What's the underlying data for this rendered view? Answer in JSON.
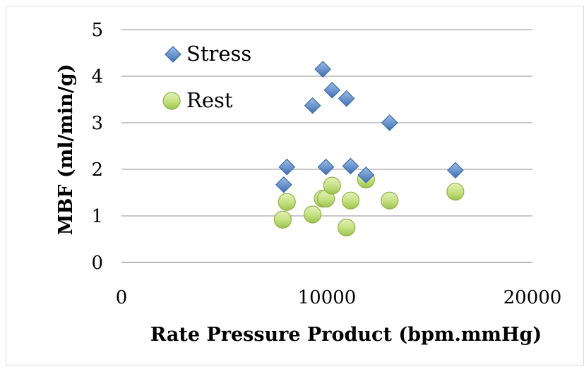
{
  "chart_data": {
    "type": "scatter",
    "title": "",
    "xlabel": "Rate Pressure Product (bpm.mmHg)",
    "ylabel": "MBF (ml/min/g)",
    "xlim": [
      0,
      20000
    ],
    "ylim": [
      0,
      5
    ],
    "xticks": [
      "0",
      "10000",
      "20000"
    ],
    "yticks": [
      "0",
      "1",
      "2",
      "3",
      "4",
      "5"
    ],
    "grid": "horizontal",
    "legend_position": "top-left",
    "series": [
      {
        "name": "Stress",
        "marker": "diamond",
        "color": "#4f81bd",
        "x": [
          7900,
          8050,
          9300,
          9800,
          9950,
          10250,
          10950,
          11150,
          11900,
          13050,
          16250
        ],
        "y": [
          1.67,
          2.05,
          3.37,
          4.15,
          2.05,
          3.7,
          3.52,
          2.07,
          1.88,
          3.0,
          1.98
        ]
      },
      {
        "name": "Rest",
        "marker": "circle",
        "color": "#b5d56a",
        "x": [
          7850,
          8050,
          9300,
          9800,
          9950,
          10250,
          10950,
          11150,
          11900,
          13050,
          16250
        ],
        "y": [
          0.92,
          1.3,
          1.03,
          1.37,
          1.37,
          1.65,
          0.75,
          1.33,
          1.78,
          1.33,
          1.52
        ]
      }
    ]
  }
}
